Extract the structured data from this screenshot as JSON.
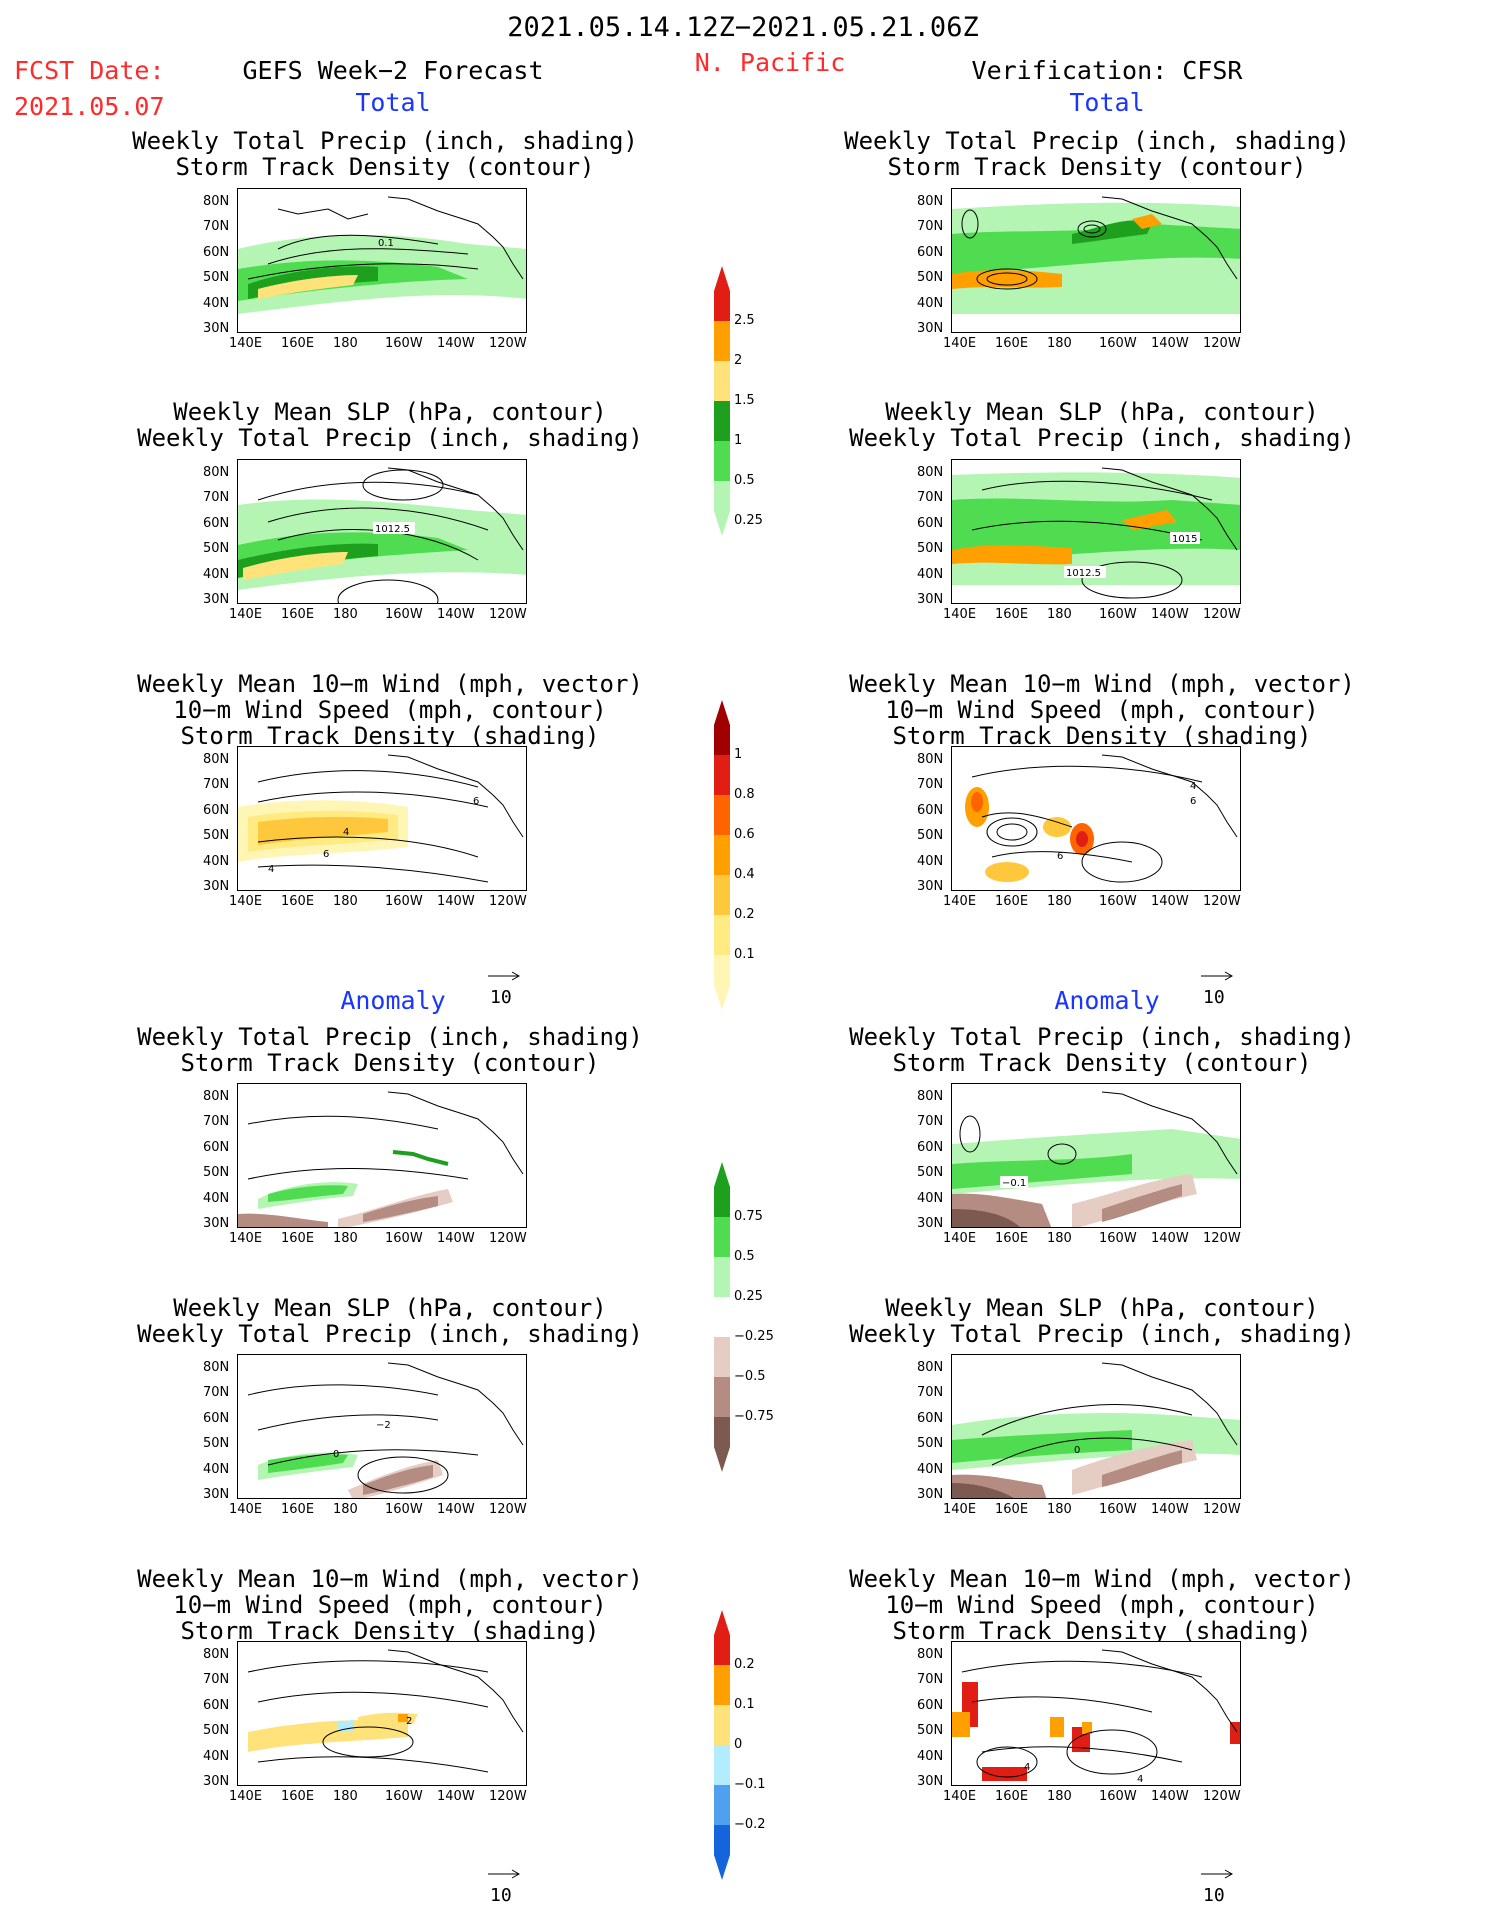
{
  "header": {
    "date_range": "2021.05.14.12Z−2021.05.21.06Z",
    "fcst_date_label": "FCST Date:",
    "fcst_date_value": "2021.05.07",
    "forecast_title": "GEFS Week−2 Forecast",
    "region": "N. Pacific",
    "verification": "Verification: CFSR"
  },
  "sections": {
    "total": "Total",
    "anomaly": "Anomaly"
  },
  "titles": {
    "precip_track": [
      "Weekly Total Precip (inch, shading)",
      "Storm Track Density (contour)"
    ],
    "slp_precip": [
      "Weekly Mean SLP (hPa, contour)",
      "Weekly Total Precip (inch, shading)"
    ],
    "wind_track": [
      "Weekly Mean 10−m Wind (mph, vector)",
      "10−m Wind Speed (mph, contour)",
      "Storm Track Density (shading)"
    ]
  },
  "axes": {
    "lat_ticks": [
      "80N",
      "70N",
      "60N",
      "50N",
      "40N",
      "30N"
    ],
    "lon_ticks": [
      "140E",
      "160E",
      "180",
      "160W",
      "140W",
      "120W"
    ]
  },
  "vector_reference": "10",
  "contour_labels": {
    "fcst_precip_track": "0.1",
    "fcst_slp": "1012.5",
    "obs_slp_a": "1012.5",
    "obs_slp_b": "1015",
    "fcst_wind_a": "4",
    "fcst_wind_b": "6",
    "fcst_wind_c": "4",
    "fcst_wind_d": "6",
    "obs_wind_a": "6",
    "obs_wind_b": "4",
    "obs_wind_c": "6",
    "anom_obs_track": "−0.1",
    "anom_fcst_slp_a": "0",
    "anom_fcst_slp_b": "−2",
    "anom_obs_slp": "0",
    "anom_fcst_wind": "2",
    "anom_obs_wind_a": "4",
    "anom_obs_wind_b": "4"
  },
  "colorbars": {
    "precip_total": {
      "labels": [
        "2.5",
        "2",
        "1.5",
        "1",
        "0.5",
        "0.25"
      ],
      "colors": [
        "#e11e14",
        "#ff9f00",
        "#ffe27a",
        "#1ea01e",
        "#50dc50",
        "#b4f5b4"
      ]
    },
    "track_total": {
      "labels": [
        "1",
        "0.8",
        "0.6",
        "0.4",
        "0.2",
        "0.1"
      ],
      "colors": [
        "#a00000",
        "#e11e14",
        "#ff6400",
        "#ff9f00",
        "#ffc83c",
        "#ffeb82",
        "#fff5b4"
      ]
    },
    "precip_anom": {
      "labels": [
        "0.75",
        "0.5",
        "0.25",
        "−0.25",
        "−0.5",
        "−0.75"
      ],
      "colors": [
        "#1ea01e",
        "#50dc50",
        "#b4f5b4",
        "#ffffff",
        "#e6cdc3",
        "#b48c82",
        "#7d5a50"
      ]
    },
    "track_anom": {
      "labels": [
        "0.2",
        "0.1",
        "0",
        "−0.1",
        "−0.2"
      ],
      "colors": [
        "#e11e14",
        "#ff9f00",
        "#ffe27a",
        "#b4ecff",
        "#50a0f0",
        "#1464dc"
      ]
    }
  }
}
